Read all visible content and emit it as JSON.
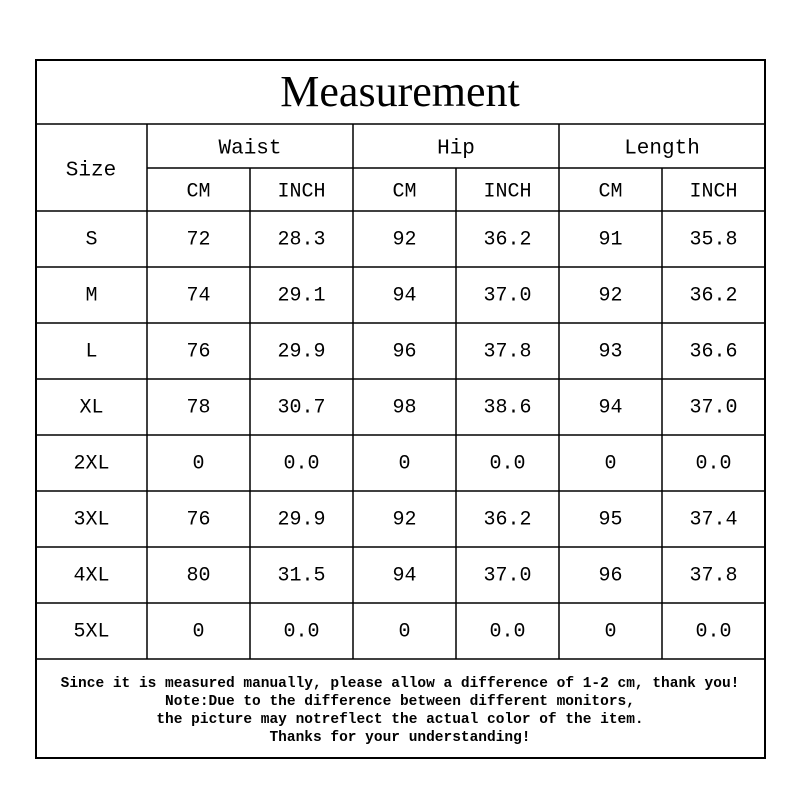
{
  "title": "Measurement",
  "header": {
    "size": "Size",
    "groups": [
      "Waist",
      "Hip",
      "Length"
    ],
    "units": [
      "CM",
      "INCH",
      "CM",
      "INCH",
      "CM",
      "INCH"
    ]
  },
  "table": {
    "rows": [
      [
        "S",
        "72",
        "28.3",
        "92",
        "36.2",
        "91",
        "35.8"
      ],
      [
        "M",
        "74",
        "29.1",
        "94",
        "37.0",
        "92",
        "36.2"
      ],
      [
        "L",
        "76",
        "29.9",
        "96",
        "37.8",
        "93",
        "36.6"
      ],
      [
        "XL",
        "78",
        "30.7",
        "98",
        "38.6",
        "94",
        "37.0"
      ],
      [
        "2XL",
        "0",
        "0.0",
        "0",
        "0.0",
        "0",
        "0.0"
      ],
      [
        "3XL",
        "76",
        "29.9",
        "92",
        "36.2",
        "95",
        "37.4"
      ],
      [
        "4XL",
        "80",
        "31.5",
        "94",
        "37.0",
        "96",
        "37.8"
      ],
      [
        "5XL",
        "0",
        "0.0",
        "0",
        "0.0",
        "0",
        "0.0"
      ]
    ]
  },
  "notes": [
    "Since it is measured manually, please allow a difference of 1-2 cm, thank you!",
    "Note:Due to the difference between different monitors,",
    "the picture may notreflect the actual color of the item.",
    "Thanks for your understanding!"
  ]
}
